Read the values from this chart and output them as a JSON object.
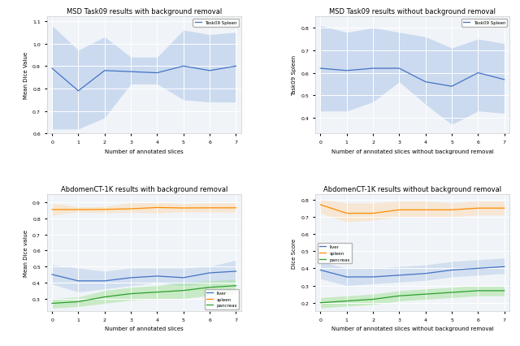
{
  "top_left": {
    "title": "MSD Task09 results with background removal",
    "xlabel": "Number of annotated slices",
    "ylabel": "Mean Dice Value",
    "legend_label": "Task09 Spleen",
    "x": [
      0,
      1,
      2,
      3,
      4,
      5,
      6,
      7
    ],
    "mean": [
      0.89,
      0.79,
      0.88,
      0.875,
      0.87,
      0.9,
      0.88,
      0.9
    ],
    "lower": [
      0.62,
      0.62,
      0.67,
      0.82,
      0.82,
      0.75,
      0.74,
      0.74
    ],
    "upper": [
      1.08,
      0.97,
      1.03,
      0.94,
      0.94,
      1.06,
      1.04,
      1.05
    ],
    "ylim": [
      0.6,
      1.12
    ],
    "yticks": [
      0.6,
      0.7,
      0.8,
      0.9,
      1.0,
      1.1
    ],
    "line_color": "#4472C4",
    "fill_color": "#AEC6E8"
  },
  "top_right": {
    "title": "MSD Task09 results without background removal",
    "xlabel": "Number of annotated slices without background removal",
    "ylabel": "Task09 Spleen",
    "legend_label": "Task09 Spleen",
    "x": [
      0,
      1,
      2,
      3,
      4,
      5,
      6,
      7
    ],
    "mean": [
      0.62,
      0.61,
      0.62,
      0.62,
      0.56,
      0.54,
      0.6,
      0.57
    ],
    "lower": [
      0.43,
      0.43,
      0.47,
      0.56,
      0.46,
      0.37,
      0.43,
      0.42
    ],
    "upper": [
      0.81,
      0.78,
      0.8,
      0.78,
      0.76,
      0.71,
      0.75,
      0.73
    ],
    "ylim": [
      0.33,
      0.85
    ],
    "yticks": [
      0.4,
      0.5,
      0.6,
      0.7,
      0.8
    ],
    "line_color": "#4472C4",
    "fill_color": "#AEC6E8"
  },
  "bottom_left": {
    "title": "AbdomenCT-1K results with background removal",
    "xlabel": "Number of annotated slices",
    "ylabel": "Mean Dice value",
    "x": [
      0,
      1,
      2,
      3,
      4,
      5,
      6,
      7
    ],
    "series": [
      {
        "label": "liver",
        "mean": [
          0.45,
          0.41,
          0.41,
          0.43,
          0.44,
          0.43,
          0.46,
          0.47
        ],
        "lower": [
          0.39,
          0.34,
          0.36,
          0.38,
          0.4,
          0.38,
          0.4,
          0.4
        ],
        "upper": [
          0.51,
          0.49,
          0.47,
          0.49,
          0.49,
          0.49,
          0.5,
          0.54
        ],
        "line_color": "#4472C4",
        "fill_color": "#AEC6E8"
      },
      {
        "label": "spleen",
        "mean": [
          0.855,
          0.855,
          0.856,
          0.86,
          0.868,
          0.865,
          0.866,
          0.866
        ],
        "lower": [
          0.82,
          0.84,
          0.835,
          0.838,
          0.835,
          0.84,
          0.84,
          0.838
        ],
        "upper": [
          0.895,
          0.872,
          0.875,
          0.898,
          0.902,
          0.892,
          0.898,
          0.898
        ],
        "line_color": "#FF8C00",
        "fill_color": "#FFD7A8"
      },
      {
        "label": "pancreas",
        "mean": [
          0.27,
          0.28,
          0.31,
          0.33,
          0.34,
          0.35,
          0.37,
          0.38
        ],
        "lower": [
          0.24,
          0.25,
          0.27,
          0.29,
          0.3,
          0.3,
          0.32,
          0.33
        ],
        "upper": [
          0.3,
          0.31,
          0.35,
          0.37,
          0.38,
          0.4,
          0.41,
          0.42
        ],
        "line_color": "#2CA02C",
        "fill_color": "#98DF8A"
      }
    ],
    "ylim": [
      0.22,
      0.95
    ],
    "yticks": [
      0.3,
      0.4,
      0.5,
      0.6,
      0.7,
      0.8,
      0.9
    ]
  },
  "bottom_right": {
    "title": "AbdomenCT-1K results without background removal",
    "xlabel": "Number of annotated slices without background removal",
    "ylabel": "Dice Score",
    "x": [
      0,
      1,
      2,
      3,
      4,
      5,
      6,
      7
    ],
    "series": [
      {
        "label": "liver",
        "mean": [
          0.39,
          0.35,
          0.35,
          0.36,
          0.37,
          0.39,
          0.4,
          0.41
        ],
        "lower": [
          0.34,
          0.3,
          0.31,
          0.32,
          0.33,
          0.35,
          0.36,
          0.37
        ],
        "upper": [
          0.44,
          0.4,
          0.4,
          0.41,
          0.42,
          0.44,
          0.45,
          0.46
        ],
        "line_color": "#4472C4",
        "fill_color": "#AEC6E8"
      },
      {
        "label": "spleen",
        "mean": [
          0.77,
          0.72,
          0.72,
          0.74,
          0.74,
          0.74,
          0.75,
          0.75
        ],
        "lower": [
          0.72,
          0.67,
          0.68,
          0.7,
          0.7,
          0.7,
          0.71,
          0.71
        ],
        "upper": [
          0.8,
          0.78,
          0.78,
          0.79,
          0.79,
          0.78,
          0.79,
          0.79
        ],
        "line_color": "#FF8C00",
        "fill_color": "#FFD7A8"
      },
      {
        "label": "pancreas",
        "mean": [
          0.2,
          0.21,
          0.22,
          0.24,
          0.25,
          0.26,
          0.27,
          0.27
        ],
        "lower": [
          0.17,
          0.18,
          0.19,
          0.21,
          0.22,
          0.23,
          0.24,
          0.24
        ],
        "upper": [
          0.23,
          0.24,
          0.25,
          0.27,
          0.28,
          0.29,
          0.3,
          0.3
        ],
        "line_color": "#2CA02C",
        "fill_color": "#98DF8A"
      }
    ],
    "ylim": [
      0.15,
      0.83
    ],
    "yticks": [
      0.2,
      0.3,
      0.4,
      0.5,
      0.6,
      0.7,
      0.8
    ]
  }
}
